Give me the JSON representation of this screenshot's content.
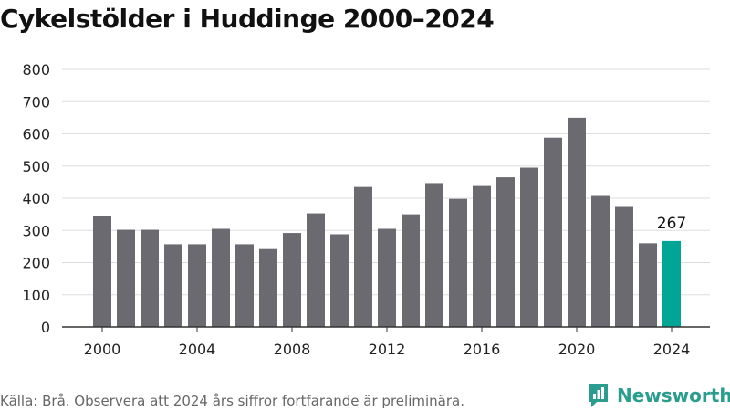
{
  "header": {
    "title": "Cykelstölder i Huddinge 2000–2024"
  },
  "footer": {
    "source": "Källa: Brå. Observera att 2024 års siffror fortfarande är preliminära.",
    "brand": "Newsworthy",
    "brand_icon": "newsworthy-logo-icon"
  },
  "colors": {
    "bar": "#6b6a70",
    "highlight": "#00a596",
    "grid": "#dddddd",
    "brand": "#2a9d8f"
  },
  "chart_data": {
    "type": "bar",
    "title": "Cykelstölder i Huddinge 2000–2024",
    "categories": [
      2000,
      2001,
      2002,
      2003,
      2004,
      2005,
      2006,
      2007,
      2008,
      2009,
      2010,
      2011,
      2012,
      2013,
      2014,
      2015,
      2016,
      2017,
      2018,
      2019,
      2020,
      2021,
      2022,
      2023,
      2024
    ],
    "values": [
      345,
      302,
      302,
      257,
      257,
      305,
      257,
      242,
      292,
      353,
      288,
      435,
      305,
      350,
      447,
      398,
      438,
      465,
      495,
      588,
      650,
      407,
      373,
      260,
      267
    ],
    "xticks": [
      2000,
      2004,
      2008,
      2012,
      2016,
      2020,
      2024
    ],
    "yticks": [
      0,
      100,
      200,
      300,
      400,
      500,
      600,
      700,
      800
    ],
    "ylim": [
      0,
      800
    ],
    "highlight": {
      "index": 24,
      "label": "267"
    },
    "grid": true,
    "legend": "none"
  }
}
